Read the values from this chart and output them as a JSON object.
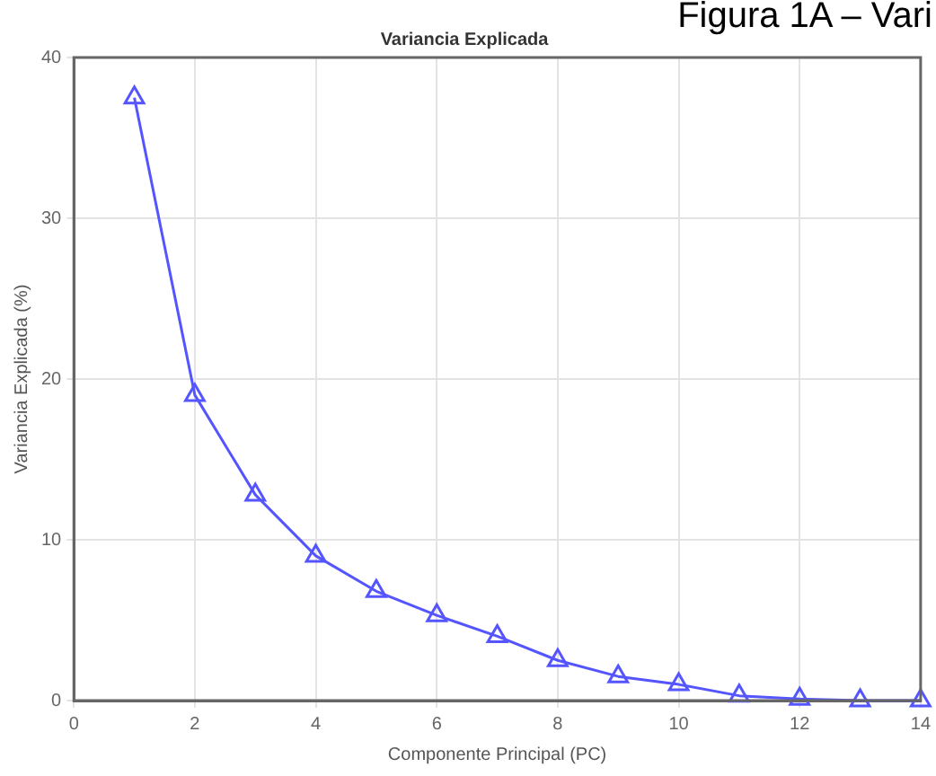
{
  "chart_data": {
    "type": "line",
    "title": "Variancia Explicada",
    "xlabel": "Componente Principal (PC)",
    "ylabel": "Variancia Explicada (%)",
    "annotations": [
      "Figura 1A – Vari"
    ],
    "x": [
      1,
      2,
      3,
      4,
      5,
      6,
      7,
      8,
      9,
      10,
      11,
      12,
      13,
      14
    ],
    "series": [
      {
        "color": "#5555ff",
        "values": [
          37.5,
          19,
          12.8,
          9,
          6.8,
          5.3,
          4,
          2.5,
          1.5,
          1,
          0.3,
          0.1,
          0,
          0
        ]
      }
    ],
    "xlim": [
      0,
      14
    ],
    "xticks": [
      0,
      2,
      4,
      6,
      8,
      10,
      12,
      14
    ],
    "ylim": [
      0,
      40
    ],
    "yticks": [
      0,
      10,
      20,
      30,
      40
    ],
    "grid": true,
    "legend": false,
    "marker": "triangle",
    "line_style": "solid"
  }
}
